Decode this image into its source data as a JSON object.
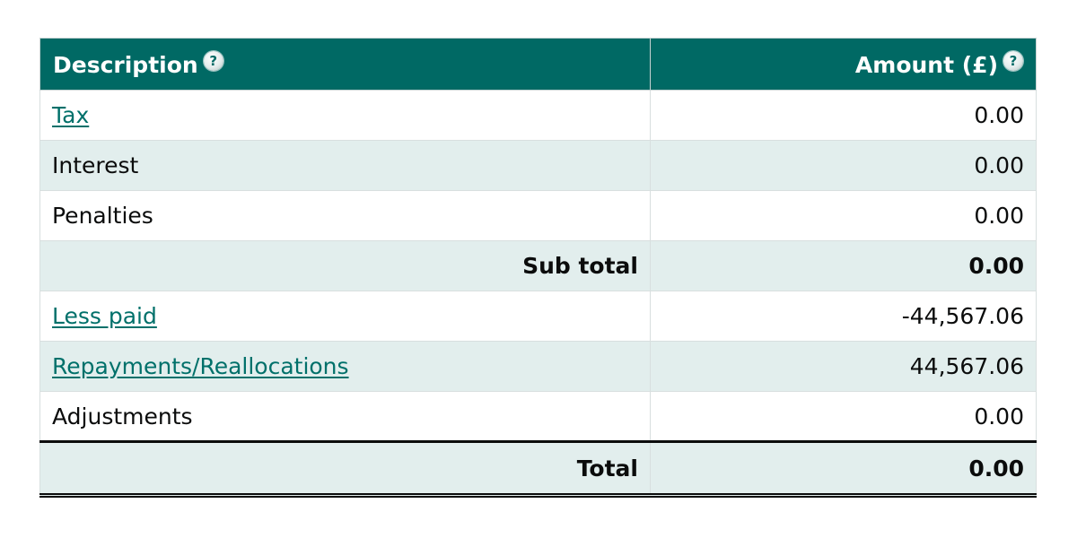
{
  "table": {
    "header": {
      "description_label": "Description",
      "amount_label": "Amount (£)",
      "help_glyph": "?"
    },
    "rows": [
      {
        "description": "Tax",
        "amount": "0.00",
        "is_link": true
      },
      {
        "description": "Interest",
        "amount": "0.00",
        "is_link": false
      },
      {
        "description": "Penalties",
        "amount": "0.00",
        "is_link": false
      },
      {
        "description": "Sub total",
        "amount": "0.00",
        "is_link": false
      },
      {
        "description": "Less paid",
        "amount": "-44,567.06",
        "is_link": true
      },
      {
        "description": "Repayments/Reallocations",
        "amount": "44,567.06",
        "is_link": true
      },
      {
        "description": "Adjustments",
        "amount": "0.00",
        "is_link": false
      },
      {
        "description": "Total",
        "amount": "0.00",
        "is_link": false
      }
    ]
  },
  "colors": {
    "header_bg": "#006964",
    "row_shade": "#e2eeed",
    "link": "#00706a"
  },
  "icons": {
    "help": "help-icon"
  }
}
